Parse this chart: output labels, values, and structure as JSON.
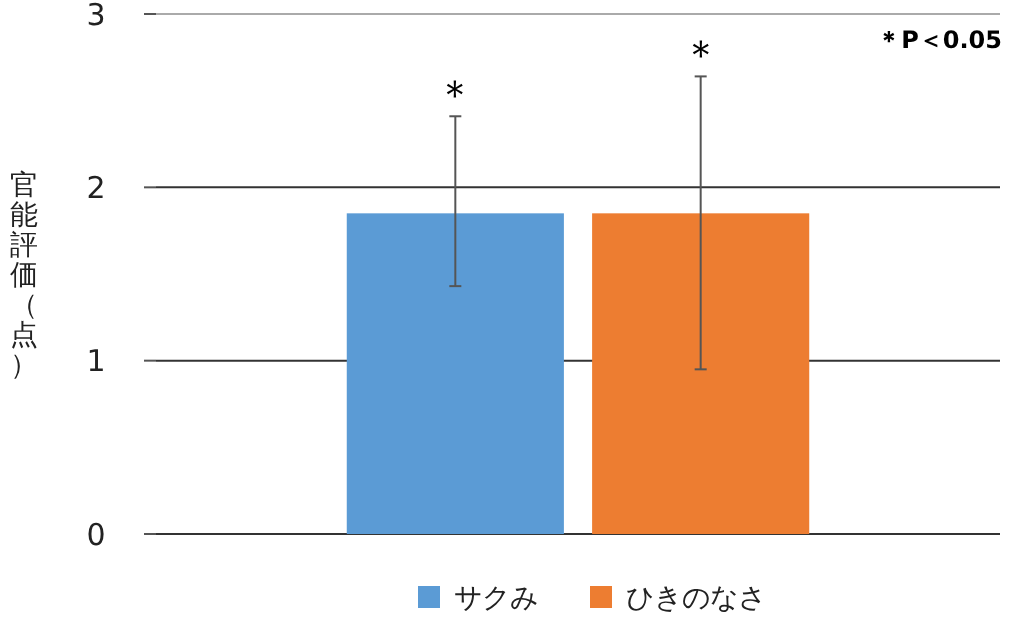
{
  "chart_data": {
    "type": "bar",
    "ylabel": "官能評価（点）",
    "categories": [
      null
    ],
    "series": [
      {
        "name": "サクみ",
        "color": "#5b9bd5",
        "values": [
          1.85
        ],
        "errors": [
          [
            1.43,
            2.41
          ]
        ]
      },
      {
        "name": "ひきのなさ",
        "color": "#ed7d31",
        "values": [
          1.85
        ],
        "errors": [
          [
            0.95,
            2.64
          ]
        ]
      }
    ],
    "ylim": [
      0,
      3
    ],
    "yticks": [
      0,
      1,
      2,
      3
    ],
    "grid": "y",
    "legend": "bottom",
    "annotations": [
      {
        "text": "＊",
        "y": 2.41
      },
      {
        "text": "＊",
        "y": 2.64
      },
      "＊P＜0.05"
    ]
  }
}
